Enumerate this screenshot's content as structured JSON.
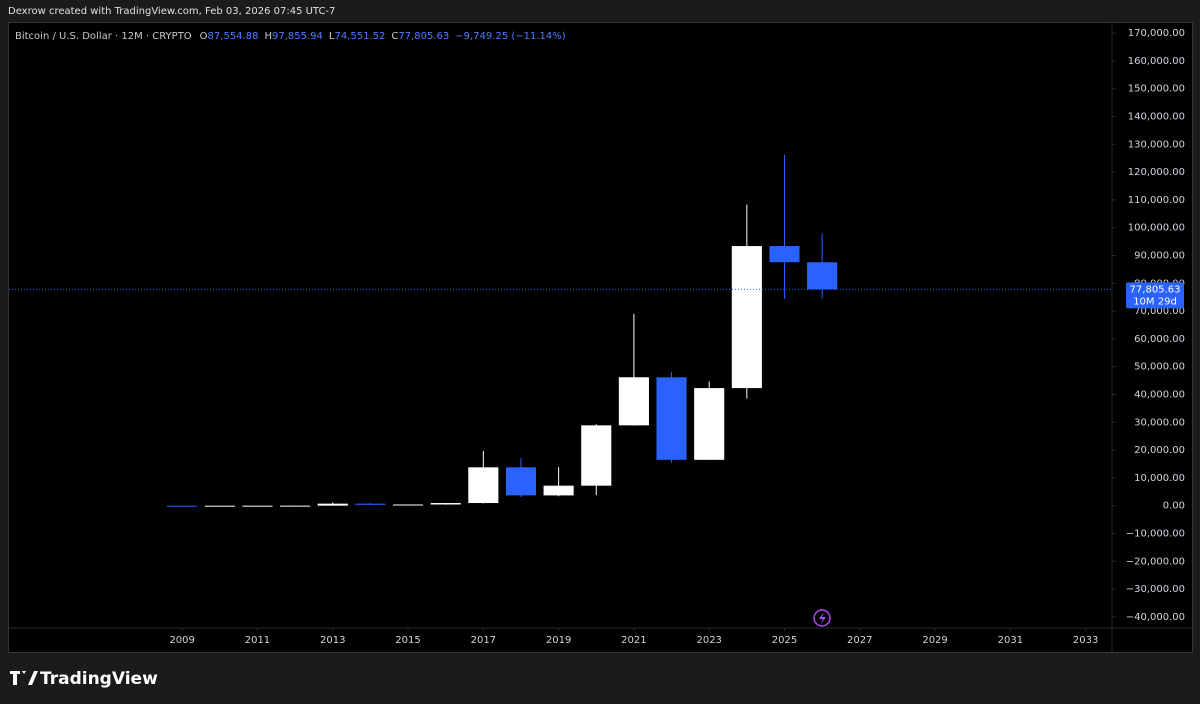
{
  "header": "Dexrow created with TradingView.com, Feb 03, 2026 07:45 UTC-7",
  "brand": "TradingView",
  "chart_data": {
    "type": "candlestick",
    "symbol": "Bitcoin / U.S. Dollar · 12M · CRYPTO",
    "ohlc": [
      {
        "key": "O",
        "text": "87,554.88"
      },
      {
        "key": "H",
        "text": "97,855.94"
      },
      {
        "key": "L",
        "text": "74,551.52"
      },
      {
        "key": "C",
        "text": "77,805.63"
      }
    ],
    "change": "−9,749.25 (−11.14%)",
    "x": [
      2009,
      2010,
      2011,
      2012,
      2013,
      2014,
      2015,
      2016,
      2017,
      2018,
      2019,
      2020,
      2021,
      2022,
      2023,
      2024,
      2025,
      2026
    ],
    "open": [
      0.1,
      0.05,
      0.3,
      4.7,
      13.5,
      730,
      320,
      430,
      960,
      13800,
      3700,
      7200,
      28900,
      46200,
      16500,
      42300,
      93400,
      87554.88
    ],
    "high": [
      0.1,
      0.4,
      32,
      16,
      1160,
      1000,
      500,
      980,
      19700,
      17200,
      13900,
      29300,
      69000,
      48200,
      44700,
      108300,
      126200,
      97855.94
    ],
    "low": [
      0.05,
      0.01,
      0.3,
      4,
      13,
      170,
      160,
      350,
      800,
      3100,
      3400,
      3800,
      28800,
      15500,
      16500,
      38500,
      74400,
      74551.52
    ],
    "close": [
      0.05,
      0.3,
      4.7,
      13.5,
      730,
      320,
      430,
      960,
      13800,
      3700,
      7200,
      28900,
      46200,
      16500,
      42300,
      93400,
      87600,
      77805.63
    ],
    "up_color": "#ffffff",
    "down_color": "#2962ff",
    "xlim": [
      2004.4,
      2033.7
    ],
    "xticks": [
      2009,
      2011,
      2013,
      2015,
      2017,
      2019,
      2021,
      2023,
      2025,
      2027,
      2029,
      2031,
      2033
    ],
    "ylim": [
      -44000,
      174000
    ],
    "yticks": [
      {
        "value": -40000,
        "label": "−40,000.00"
      },
      {
        "value": -30000,
        "label": "−30,000.00"
      },
      {
        "value": -20000,
        "label": "−20,000.00"
      },
      {
        "value": -10000,
        "label": "−10,000.00"
      },
      {
        "value": 0,
        "label": "0.00"
      },
      {
        "value": 10000,
        "label": "10,000.00"
      },
      {
        "value": 20000,
        "label": "20,000.00"
      },
      {
        "value": 30000,
        "label": "30,000.00"
      },
      {
        "value": 40000,
        "label": "40,000.00"
      },
      {
        "value": 50000,
        "label": "50,000.00"
      },
      {
        "value": 60000,
        "label": "60,000.00"
      },
      {
        "value": 70000,
        "label": "70,000.00"
      },
      {
        "value": 80000,
        "label": "80,000.00"
      },
      {
        "value": 90000,
        "label": "90,000.00"
      },
      {
        "value": 100000,
        "label": "100,000.00"
      },
      {
        "value": 110000,
        "label": "110,000.00"
      },
      {
        "value": 120000,
        "label": "120,000.00"
      },
      {
        "value": 130000,
        "label": "130,000.00"
      },
      {
        "value": 140000,
        "label": "140,000.00"
      },
      {
        "value": 150000,
        "label": "150,000.00"
      },
      {
        "value": 160000,
        "label": "160,000.00"
      },
      {
        "value": 170000,
        "label": "170,000.00"
      }
    ],
    "last_price": {
      "value": 77805.63,
      "label": "77,805.63"
    },
    "countdown": "10M 29d"
  }
}
